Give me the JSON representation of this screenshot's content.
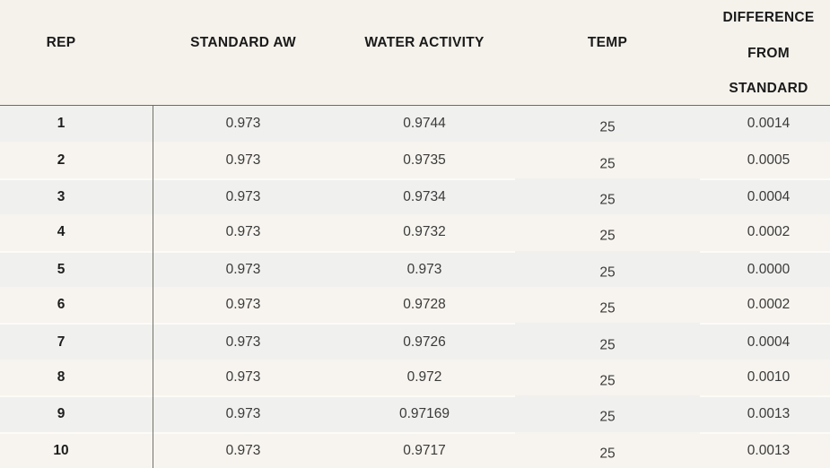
{
  "table": {
    "columns": [
      {
        "key": "rep",
        "label": "REP"
      },
      {
        "key": "standard_aw",
        "label": "STANDARD AW"
      },
      {
        "key": "water_activity",
        "label": "WATER ACTIVITY"
      },
      {
        "key": "temp",
        "label": "TEMP"
      },
      {
        "key": "difference",
        "label": "DIFFERENCE FROM STANDARD"
      }
    ],
    "difference_header_lines": {
      "0": "DIFFERENCE",
      "1": "FROM",
      "2": "STANDARD"
    },
    "rows": [
      {
        "rep": "1",
        "standard_aw": "0.973",
        "water_activity": "0.9744",
        "temp": "25",
        "difference": "0.0014"
      },
      {
        "rep": "2",
        "standard_aw": "0.973",
        "water_activity": "0.9735",
        "temp": "25",
        "difference": "0.0005"
      },
      {
        "rep": "3",
        "standard_aw": "0.973",
        "water_activity": "0.9734",
        "temp": "25",
        "difference": "0.0004"
      },
      {
        "rep": "4",
        "standard_aw": "0.973",
        "water_activity": "0.9732",
        "temp": "25",
        "difference": "0.0002"
      },
      {
        "rep": "5",
        "standard_aw": "0.973",
        "water_activity": "0.973",
        "temp": "25",
        "difference": "0.0000"
      },
      {
        "rep": "6",
        "standard_aw": "0.973",
        "water_activity": "0.9728",
        "temp": "25",
        "difference": "0.0002"
      },
      {
        "rep": "7",
        "standard_aw": "0.973",
        "water_activity": "0.9726",
        "temp": "25",
        "difference": "0.0004"
      },
      {
        "rep": "8",
        "standard_aw": "0.973",
        "water_activity": "0.972",
        "temp": "25",
        "difference": "0.0010"
      },
      {
        "rep": "9",
        "standard_aw": "0.973",
        "water_activity": "0.97169",
        "temp": "25",
        "difference": "0.0013"
      },
      {
        "rep": "10",
        "standard_aw": "0.973",
        "water_activity": "0.9717",
        "temp": "25",
        "difference": "0.0013"
      }
    ]
  },
  "chart_data": {
    "type": "table",
    "title": "",
    "columns": [
      "REP",
      "STANDARD AW",
      "WATER ACTIVITY",
      "TEMP",
      "DIFFERENCE FROM STANDARD"
    ],
    "rows": [
      [
        1,
        0.973,
        0.9744,
        25,
        0.0014
      ],
      [
        2,
        0.973,
        0.9735,
        25,
        0.0005
      ],
      [
        3,
        0.973,
        0.9734,
        25,
        0.0004
      ],
      [
        4,
        0.973,
        0.9732,
        25,
        0.0002
      ],
      [
        5,
        0.973,
        0.973,
        25,
        0.0
      ],
      [
        6,
        0.973,
        0.9728,
        25,
        0.0002
      ],
      [
        7,
        0.973,
        0.9726,
        25,
        0.0004
      ],
      [
        8,
        0.973,
        0.972,
        25,
        0.001
      ],
      [
        9,
        0.973,
        0.97169,
        25,
        0.0013
      ],
      [
        10,
        0.973,
        0.9717,
        25,
        0.0013
      ]
    ]
  },
  "colors": {
    "header_background": "#f5f2ec",
    "row_stripe_grey": "#f0f0ee",
    "row_stripe_cream": "#f7f4ef",
    "separator_white": "#fcfbf8",
    "rule_dark": "#6c6c64",
    "header_text": "#1a1a1a",
    "cell_text": "#3a3a3a"
  }
}
